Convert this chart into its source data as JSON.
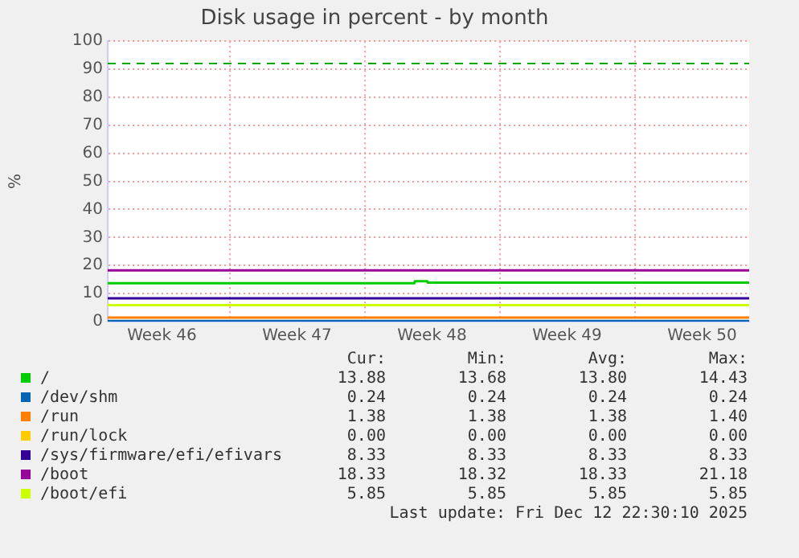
{
  "chart_data": {
    "type": "line",
    "title": "Disk usage in percent - by month",
    "ylabel": "%",
    "xlim": [
      "2025-11-09T16:30",
      "2025-12-12T22:30"
    ],
    "xticks": [
      {
        "value": "2025-11-12T12:00",
        "label": "Week 46"
      },
      {
        "value": "2025-11-16",
        "label": null
      },
      {
        "value": "2025-11-19T12:00",
        "label": "Week 47"
      },
      {
        "value": "2025-11-23",
        "label": null
      },
      {
        "value": "2025-11-26T12:00",
        "label": "Week 48"
      },
      {
        "value": "2025-11-30",
        "label": null
      },
      {
        "value": "2025-12-03T12:00",
        "label": "Week 49"
      },
      {
        "value": "2025-12-07",
        "label": null
      },
      {
        "value": "2025-12-10T12:00",
        "label": "Week 50"
      }
    ],
    "ylim": [
      0,
      100
    ],
    "yticks": [
      0,
      10,
      20,
      30,
      40,
      50,
      60,
      70,
      80,
      90,
      100
    ],
    "grid": true,
    "legend": "bottom",
    "marker": "none",
    "line_style": "solid",
    "series": [
      {
        "name": "/",
        "color": "#00cc00",
        "x": [
          "2025-11-09T16:30",
          "2025-11-25T14:00",
          "2025-11-25T14:30",
          "2025-11-26T06:00",
          "2025-11-26T06:30",
          "2025-12-12T22:30"
        ],
        "values": [
          13.7,
          13.7,
          14.4,
          14.4,
          13.9,
          13.9
        ]
      },
      {
        "name": "/dev/shm",
        "color": "#0066b3",
        "x": [
          "2025-11-09T16:30",
          "2025-12-12T22:30"
        ],
        "values": [
          0.2,
          0.2
        ]
      },
      {
        "name": "/run",
        "color": "#ff8000",
        "x": [
          "2025-11-09T16:30",
          "2025-12-12T22:30"
        ],
        "values": [
          1.4,
          1.4
        ]
      },
      {
        "name": "/run/lock",
        "color": "#ffcc00"
      },
      {
        "name": "/sys/firmware/efi/efivars",
        "color": "#330099",
        "x": [
          "2025-11-09T16:30",
          "2025-12-12T22:30"
        ],
        "values": [
          8.3,
          8.3
        ]
      },
      {
        "name": "/boot",
        "color": "#990099",
        "x": [
          "2025-11-09T16:30",
          "2025-12-12T22:30"
        ],
        "values": [
          18.3,
          18.3
        ]
      },
      {
        "name": "/boot/efi",
        "color": "#ccff00",
        "x": [
          "2025-11-09T16:30",
          "2025-12-12T22:30"
        ],
        "values": [
          5.9,
          5.9
        ]
      }
    ],
    "ref_lines": [
      {
        "axis": "y",
        "value": 92,
        "color": "#00aa00",
        "line_style": "dashed"
      }
    ],
    "annotations": [
      "Cur:",
      "Min:",
      "Avg:",
      "Max:",
      "13.88",
      "13.68",
      "13.80",
      "14.43",
      "0.24",
      "0.24",
      "0.24",
      "0.24",
      "1.38",
      "1.38",
      "1.38",
      "1.40",
      "0.00",
      "0.00",
      "0.00",
      "0.00",
      "8.33",
      "8.33",
      "8.33",
      "8.33",
      "18.33",
      "18.32",
      "18.33",
      "21.18",
      "5.85",
      "5.85",
      "5.85",
      "5.85",
      "Last update: Fri Dec 12 22:30:10 2025"
    ]
  }
}
